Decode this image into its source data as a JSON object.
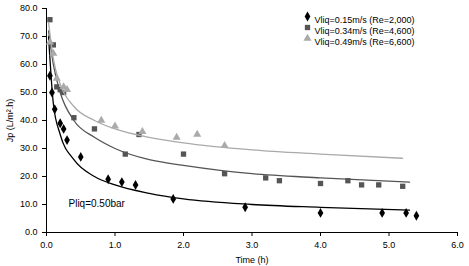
{
  "chart_data": {
    "type": "scatter",
    "x_label": "Time (h)",
    "y_label": "Jp (L/m².h)",
    "annotation": "Pliq=0.50bar",
    "legend": "top-right",
    "grid": false,
    "xlim": [
      0,
      6
    ],
    "ylim": [
      0,
      80
    ],
    "xticks": [
      {
        "value": 0,
        "label": "0.0"
      },
      {
        "value": 1,
        "label": "1.0"
      },
      {
        "value": 2,
        "label": "2.0"
      },
      {
        "value": 3,
        "label": "3.0"
      },
      {
        "value": 4,
        "label": "4.0"
      },
      {
        "value": 5,
        "label": "5.0"
      },
      {
        "value": 6,
        "label": "6.0"
      }
    ],
    "yticks": [
      {
        "value": 0,
        "label": "0.0"
      },
      {
        "value": 10,
        "label": "10.0"
      },
      {
        "value": 20,
        "label": "20.0"
      },
      {
        "value": 30,
        "label": "30.0"
      },
      {
        "value": 40,
        "label": "40.0"
      },
      {
        "value": 50,
        "label": "50.0"
      },
      {
        "value": 60,
        "label": "60.0"
      },
      {
        "value": 70,
        "label": "70.0"
      },
      {
        "value": 80,
        "label": "80.0"
      }
    ],
    "series": [
      {
        "name": "Vliq=0.15m/s (Re=2,000)",
        "color": "#000000",
        "marker": "diamond",
        "x": [
          0.05,
          0.08,
          0.12,
          0.2,
          0.25,
          0.3,
          0.5,
          0.9,
          1.1,
          1.3,
          1.85,
          2.9,
          4.0,
          4.9,
          5.25,
          5.4
        ],
        "values": [
          56,
          50,
          44,
          39,
          37,
          33,
          27,
          19,
          18,
          17,
          12,
          9,
          7,
          7,
          7,
          6
        ],
        "fit": {
          "x": [
            0.03,
            0.1,
            0.2,
            0.4,
            0.7,
            1,
            1.5,
            2,
            3,
            4,
            5.3
          ],
          "values": [
            70,
            46,
            35,
            26,
            20,
            17,
            14,
            12,
            10,
            9,
            8
          ]
        }
      },
      {
        "name": "Vliq=0.34m/s (Re=4,600)",
        "color": "#555555",
        "marker": "square",
        "x": [
          0.05,
          0.1,
          0.15,
          0.2,
          0.25,
          0.4,
          0.7,
          1.15,
          1.35,
          2.0,
          2.6,
          3.2,
          3.4,
          4.0,
          4.4,
          4.6,
          4.85,
          5.2
        ],
        "values": [
          76,
          67,
          52,
          51,
          50,
          41,
          37,
          28,
          35,
          28,
          21,
          19.5,
          18.5,
          17.5,
          18.5,
          17,
          17,
          16.5
        ],
        "fit": {
          "x": [
            0.03,
            0.1,
            0.2,
            0.4,
            0.7,
            1,
            1.5,
            2,
            3,
            4,
            5.3
          ],
          "values": [
            72,
            60,
            50,
            40,
            34,
            30,
            26,
            24,
            21,
            19.5,
            18
          ]
        }
      },
      {
        "name": "Vliq=0.49m/s (Re=6,600)",
        "color": "#aaaaaa",
        "marker": "triangle",
        "x": [
          0.05,
          0.1,
          0.15,
          0.25,
          0.3,
          0.8,
          1.0,
          1.4,
          1.9,
          2.2,
          2.6
        ],
        "values": [
          68,
          64,
          55,
          52,
          51,
          40,
          38,
          36,
          34,
          35,
          31
        ],
        "fit": {
          "x": [
            0.03,
            0.1,
            0.2,
            0.4,
            0.7,
            1,
            1.5,
            2,
            3,
            4,
            5.2
          ],
          "values": [
            75,
            62,
            53,
            45,
            40,
            37,
            34,
            32,
            29.5,
            28,
            26.5
          ]
        }
      }
    ]
  }
}
